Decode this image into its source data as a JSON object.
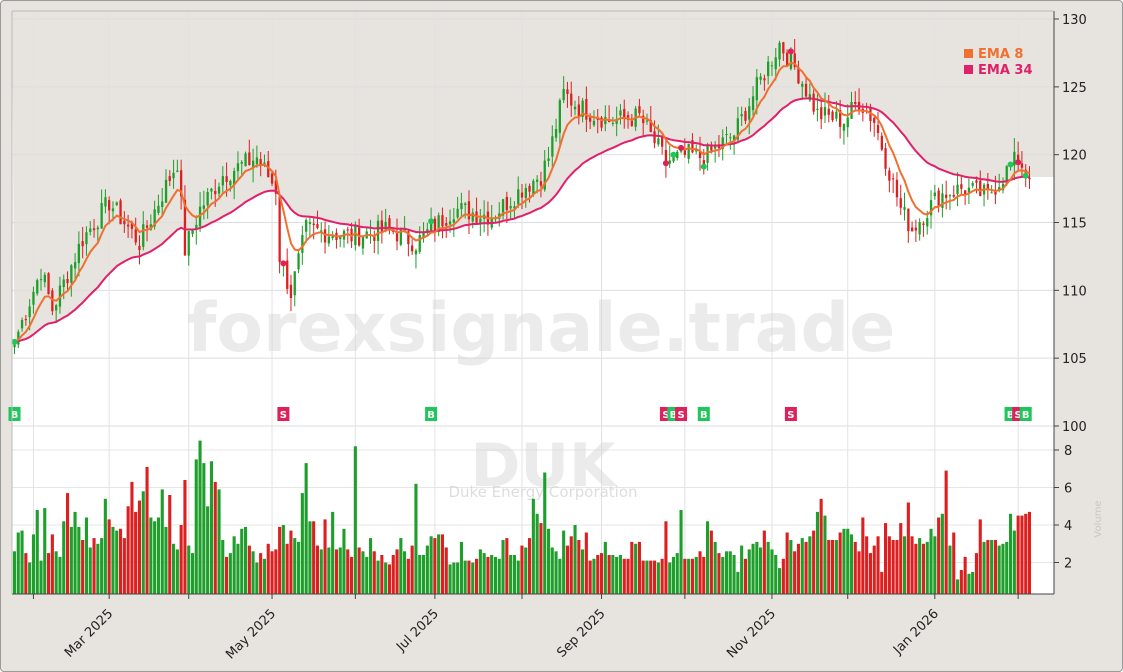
{
  "watermark": {
    "site": "forexsignale.trade",
    "symbol": "DUK",
    "company": "Duke Energy Corporation",
    "side_label": "Volume"
  },
  "legend": [
    {
      "label": "EMA 8",
      "color": "#f07030"
    },
    {
      "label": "EMA 34",
      "color": "#e0206a"
    }
  ],
  "colors": {
    "up": "#1e9e2a",
    "down": "#dd1f1f",
    "ema_fast": "#f07030",
    "ema_slow": "#e0206a",
    "buy": "#1ec75a",
    "sell": "#e0205a",
    "shade": "#e7e3de"
  },
  "chart_data": {
    "type": "candlestick",
    "symbol": "DUK",
    "price_axis": {
      "ticks": [
        "100",
        "105",
        "110",
        "115",
        "120",
        "125",
        "130"
      ],
      "ylim": [
        100,
        130.5
      ]
    },
    "volume_axis": {
      "ticks": [
        "2",
        "4",
        "6",
        "8"
      ],
      "ylim": [
        0.6,
        9
      ]
    },
    "date_axis": {
      "labels": [
        "Mar 2025",
        "May 2025",
        "Jul 2025",
        "Sep 2025",
        "Nov 2025",
        "Jan 2026"
      ]
    },
    "last_close": 118.2,
    "close_anchors": [
      [
        "2025-01-27",
        106.2
      ],
      [
        "2025-02-05",
        111.5
      ],
      [
        "2025-02-10",
        108.6
      ],
      [
        "2025-02-20",
        113.8
      ],
      [
        "2025-03-03",
        116.5
      ],
      [
        "2025-03-13",
        113.5
      ],
      [
        "2025-03-27",
        119.5
      ],
      [
        "2025-03-31",
        113.0
      ],
      [
        "2025-04-04",
        116.0
      ],
      [
        "2025-04-14",
        118.5
      ],
      [
        "2025-04-25",
        119.8
      ],
      [
        "2025-05-02",
        117.5
      ],
      [
        "2025-05-05",
        112.5
      ],
      [
        "2025-05-08",
        109.8
      ],
      [
        "2025-05-14",
        114.5
      ],
      [
        "2025-05-30",
        114.0
      ],
      [
        "2025-06-13",
        114.5
      ],
      [
        "2025-06-24",
        113.5
      ],
      [
        "2025-07-08",
        116.0
      ],
      [
        "2025-07-22",
        115.5
      ],
      [
        "2025-08-01",
        117.5
      ],
      [
        "2025-08-08",
        118.5
      ],
      [
        "2025-08-12",
        119.8
      ],
      [
        "2025-08-18",
        124.5
      ],
      [
        "2025-08-22",
        123.5
      ],
      [
        "2025-09-03",
        122.5
      ],
      [
        "2025-09-15",
        122.8
      ],
      [
        "2025-09-24",
        119.5
      ],
      [
        "2025-10-02",
        120.0
      ],
      [
        "2025-10-08",
        119.8
      ],
      [
        "2025-10-20",
        121.5
      ],
      [
        "2025-10-29",
        125.5
      ],
      [
        "2025-11-05",
        128.2
      ],
      [
        "2025-11-12",
        126.0
      ],
      [
        "2025-11-19",
        123.0
      ],
      [
        "2025-11-28",
        122.5
      ],
      [
        "2025-12-04",
        124.0
      ],
      [
        "2025-12-10",
        122.5
      ],
      [
        "2025-12-19",
        116.0
      ],
      [
        "2025-12-24",
        114.5
      ],
      [
        "2026-01-02",
        117.0
      ],
      [
        "2026-01-12",
        117.5
      ],
      [
        "2026-01-21",
        117.0
      ],
      [
        "2026-01-28",
        118.8
      ],
      [
        "2026-02-02",
        119.8
      ],
      [
        "2026-02-05",
        118.2
      ]
    ],
    "volume_millions": [
      2.6,
      3.6,
      3.7,
      2.5,
      2.0,
      3.5,
      4.8,
      2.1,
      4.9,
      2.5,
      3.5,
      2.6,
      2.3,
      4.2,
      5.7,
      3.9,
      4.7,
      3.9,
      3.2,
      4.4,
      2.8,
      3.3,
      3.0,
      3.3,
      5.4,
      4.3,
      3.9,
      3.7,
      3.8,
      3.3,
      5.0,
      6.3,
      4.7,
      5.3,
      5.8,
      7.1,
      4.4,
      4.2,
      4.4,
      5.9,
      3.9,
      5.6,
      3.0,
      2.7,
      4.0,
      6.4,
      2.9,
      2.5,
      7.5,
      8.5,
      7.3,
      5.0,
      7.4,
      6.3,
      5.9,
      3.2,
      2.3,
      2.5,
      3.4,
      3.0,
      3.8,
      3.9,
      2.9,
      2.6,
      2.0,
      2.5,
      2.2,
      3.0,
      2.6,
      2.7,
      3.9,
      4.0,
      3.0,
      3.7,
      3.3,
      3.1,
      5.7,
      7.3,
      4.2,
      4.2,
      2.9,
      2.7,
      4.3,
      2.8,
      4.7,
      2.7,
      2.8,
      3.8,
      2.7,
      2.3,
      8.2,
      2.8,
      2.6,
      2.3,
      3.3,
      2.6,
      2.1,
      2.4,
      2.0,
      1.9,
      2.4,
      2.7,
      3.3,
      2.6,
      2.2,
      2.9,
      6.2,
      2.4,
      2.4,
      2.9,
      3.4,
      3.3,
      3.5,
      3.5,
      2.8,
      1.9,
      2.0,
      2.0,
      3.1,
      2.1,
      2.1,
      2.0,
      2.2,
      2.7,
      2.5,
      2.3,
      2.4,
      2.3,
      2.2,
      3.2,
      3.3,
      2.4,
      2.4,
      2.1,
      2.9,
      2.8,
      3.3,
      5.4,
      4.6,
      4.1,
      6.8,
      3.8,
      2.8,
      2.6,
      2.2,
      3.7,
      2.9,
      3.4,
      4.0,
      3.2,
      2.7,
      3.6,
      2.1,
      2.2,
      2.4,
      2.5,
      3.1,
      2.4,
      2.4,
      2.3,
      2.4,
      2.2,
      2.2,
      3.1,
      3.0,
      3.1,
      2.1,
      2.1,
      2.1,
      2.1,
      2.0,
      2.2,
      4.2,
      2.0,
      2.3,
      2.5,
      4.8,
      2.2,
      2.2,
      2.2,
      2.3,
      2.6,
      2.3,
      4.2,
      3.7,
      3.1,
      2.5,
      2.3,
      2.6,
      2.6,
      2.4,
      1.5,
      2.9,
      2.2,
      2.7,
      3.0,
      3.1,
      2.8,
      3.7,
      3.1,
      2.7,
      2.4,
      1.7,
      2.2,
      3.6,
      3.2,
      2.6,
      3.0,
      3.3,
      3.1,
      3.4,
      3.7,
      4.7,
      5.4,
      4.5,
      3.2,
      3.2,
      3.2,
      3.6,
      3.8,
      3.8,
      3.5,
      3.1,
      2.6,
      4.4,
      3.4,
      2.5,
      2.9,
      3.4,
      1.5,
      4.1,
      3.4,
      3.2,
      3.2,
      4.1,
      3.4,
      5.2,
      3.4,
      3.0,
      3.3,
      3.0,
      3.1,
      3.8,
      3.4,
      4.4,
      4.6,
      6.9,
      2.9,
      3.6,
      1.1,
      1.6,
      2.3,
      1.4,
      1.5,
      2.5,
      4.3,
      3.1,
      3.2,
      3.2,
      3.2,
      2.9,
      3.0,
      3.1,
      4.6,
      3.7,
      4.5,
      4.5,
      4.6,
      4.7,
      3.8,
      4.5,
      4.0
    ],
    "signals": [
      {
        "type": "B",
        "date": "2025-01-27"
      },
      {
        "type": "S",
        "date": "2025-05-06"
      },
      {
        "type": "B",
        "date": "2025-06-30"
      },
      {
        "type": "S",
        "date": "2025-09-24"
      },
      {
        "type": "B",
        "date": "2025-09-26"
      },
      {
        "type": "S",
        "date": "2025-09-30"
      },
      {
        "type": "B",
        "date": "2025-10-08"
      },
      {
        "type": "S",
        "date": "2025-11-10"
      },
      {
        "type": "B",
        "date": "2026-01-29"
      },
      {
        "type": "S",
        "date": "2026-02-02"
      },
      {
        "type": "B",
        "date": "2026-02-04"
      }
    ]
  }
}
